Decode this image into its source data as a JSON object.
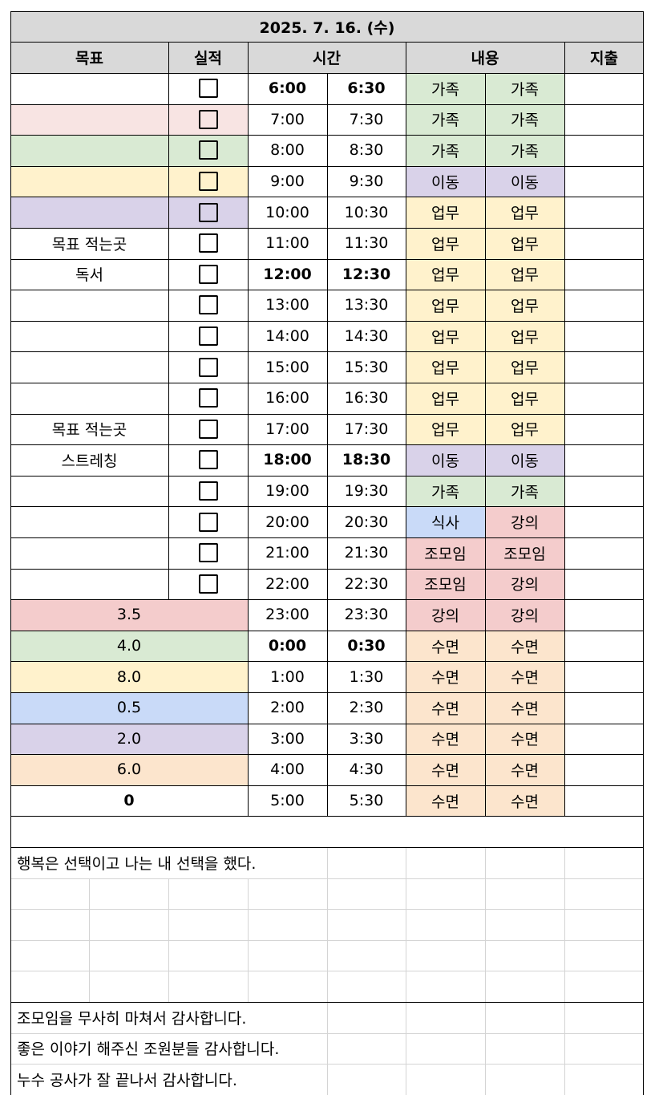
{
  "title": "2025. 7. 16. (수)",
  "headers": {
    "goal": "목표",
    "done": "실적",
    "time": "시간",
    "content": "내용",
    "expense": "지출"
  },
  "colors": {
    "header": "#d9d9d9",
    "pink": "#f8e4e3",
    "green": "#d9ead3",
    "yellow": "#fff2cc",
    "lavender": "#d9d2e9",
    "blue": "#c9daf8",
    "peach": "#fce5cd",
    "red": "#f4cccc",
    "white": "#ffffff"
  },
  "rows": [
    {
      "goal": "",
      "goal_color": "white",
      "checkbox": true,
      "check_color": "white",
      "t1": "6:00",
      "t2": "6:30",
      "bold": true,
      "c1": "가족",
      "c1_color": "green",
      "c2": "가족",
      "c2_color": "green"
    },
    {
      "goal": "",
      "goal_color": "pink",
      "checkbox": true,
      "check_color": "pink",
      "t1": "7:00",
      "t2": "7:30",
      "bold": false,
      "c1": "가족",
      "c1_color": "green",
      "c2": "가족",
      "c2_color": "green"
    },
    {
      "goal": "",
      "goal_color": "green",
      "checkbox": true,
      "check_color": "green",
      "t1": "8:00",
      "t2": "8:30",
      "bold": false,
      "c1": "가족",
      "c1_color": "green",
      "c2": "가족",
      "c2_color": "green"
    },
    {
      "goal": "",
      "goal_color": "yellow",
      "checkbox": true,
      "check_color": "yellow",
      "t1": "9:00",
      "t2": "9:30",
      "bold": false,
      "c1": "이동",
      "c1_color": "lavender",
      "c2": "이동",
      "c2_color": "lavender"
    },
    {
      "goal": "",
      "goal_color": "lavender",
      "checkbox": true,
      "check_color": "lavender",
      "t1": "10:00",
      "t2": "10:30",
      "bold": false,
      "c1": "업무",
      "c1_color": "yellow",
      "c2": "업무",
      "c2_color": "yellow"
    },
    {
      "goal": "목표 적는곳",
      "goal_color": "white",
      "checkbox": true,
      "check_color": "white",
      "t1": "11:00",
      "t2": "11:30",
      "bold": false,
      "c1": "업무",
      "c1_color": "yellow",
      "c2": "업무",
      "c2_color": "yellow"
    },
    {
      "goal": "독서",
      "goal_color": "white",
      "checkbox": true,
      "check_color": "white",
      "t1": "12:00",
      "t2": "12:30",
      "bold": true,
      "c1": "업무",
      "c1_color": "yellow",
      "c2": "업무",
      "c2_color": "yellow"
    },
    {
      "goal": "",
      "goal_color": "white",
      "checkbox": true,
      "check_color": "white",
      "t1": "13:00",
      "t2": "13:30",
      "bold": false,
      "c1": "업무",
      "c1_color": "yellow",
      "c2": "업무",
      "c2_color": "yellow"
    },
    {
      "goal": "",
      "goal_color": "white",
      "checkbox": true,
      "check_color": "white",
      "t1": "14:00",
      "t2": "14:30",
      "bold": false,
      "c1": "업무",
      "c1_color": "yellow",
      "c2": "업무",
      "c2_color": "yellow"
    },
    {
      "goal": "",
      "goal_color": "white",
      "checkbox": true,
      "check_color": "white",
      "t1": "15:00",
      "t2": "15:30",
      "bold": false,
      "c1": "업무",
      "c1_color": "yellow",
      "c2": "업무",
      "c2_color": "yellow"
    },
    {
      "goal": "",
      "goal_color": "white",
      "checkbox": true,
      "check_color": "white",
      "t1": "16:00",
      "t2": "16:30",
      "bold": false,
      "c1": "업무",
      "c1_color": "yellow",
      "c2": "업무",
      "c2_color": "yellow"
    },
    {
      "goal": "목표 적는곳",
      "goal_color": "white",
      "checkbox": true,
      "check_color": "white",
      "t1": "17:00",
      "t2": "17:30",
      "bold": false,
      "c1": "업무",
      "c1_color": "yellow",
      "c2": "업무",
      "c2_color": "yellow"
    },
    {
      "goal": "스트레칭",
      "goal_color": "white",
      "checkbox": true,
      "check_color": "white",
      "t1": "18:00",
      "t2": "18:30",
      "bold": true,
      "c1": "이동",
      "c1_color": "lavender",
      "c2": "이동",
      "c2_color": "lavender"
    },
    {
      "goal": "",
      "goal_color": "white",
      "checkbox": true,
      "check_color": "white",
      "t1": "19:00",
      "t2": "19:30",
      "bold": false,
      "c1": "가족",
      "c1_color": "green",
      "c2": "가족",
      "c2_color": "green"
    },
    {
      "goal": "",
      "goal_color": "white",
      "checkbox": true,
      "check_color": "white",
      "t1": "20:00",
      "t2": "20:30",
      "bold": false,
      "c1": "식사",
      "c1_color": "blue",
      "c2": "강의",
      "c2_color": "red"
    },
    {
      "goal": "",
      "goal_color": "white",
      "checkbox": true,
      "check_color": "white",
      "t1": "21:00",
      "t2": "21:30",
      "bold": false,
      "c1": "조모임",
      "c1_color": "red",
      "c2": "조모임",
      "c2_color": "red"
    },
    {
      "goal": "",
      "goal_color": "white",
      "checkbox": true,
      "check_color": "white",
      "t1": "22:00",
      "t2": "22:30",
      "bold": false,
      "c1": "조모임",
      "c1_color": "red",
      "c2": "강의",
      "c2_color": "red"
    },
    {
      "summary": "3.5",
      "summary_color": "red",
      "summary_bold": false,
      "t1": "23:00",
      "t2": "23:30",
      "bold": false,
      "c1": "강의",
      "c1_color": "red",
      "c2": "강의",
      "c2_color": "red"
    },
    {
      "summary": "4.0",
      "summary_color": "green",
      "summary_bold": false,
      "t1": "0:00",
      "t2": "0:30",
      "bold": true,
      "c1": "수면",
      "c1_color": "peach",
      "c2": "수면",
      "c2_color": "peach"
    },
    {
      "summary": "8.0",
      "summary_color": "yellow",
      "summary_bold": false,
      "t1": "1:00",
      "t2": "1:30",
      "bold": false,
      "c1": "수면",
      "c1_color": "peach",
      "c2": "수면",
      "c2_color": "peach"
    },
    {
      "summary": "0.5",
      "summary_color": "blue",
      "summary_bold": false,
      "t1": "2:00",
      "t2": "2:30",
      "bold": false,
      "c1": "수면",
      "c1_color": "peach",
      "c2": "수면",
      "c2_color": "peach"
    },
    {
      "summary": "2.0",
      "summary_color": "lavender",
      "summary_bold": false,
      "t1": "3:00",
      "t2": "3:30",
      "bold": false,
      "c1": "수면",
      "c1_color": "peach",
      "c2": "수면",
      "c2_color": "peach"
    },
    {
      "summary": "6.0",
      "summary_color": "peach",
      "summary_bold": false,
      "t1": "4:00",
      "t2": "4:30",
      "bold": false,
      "c1": "수면",
      "c1_color": "peach",
      "c2": "수면",
      "c2_color": "peach"
    },
    {
      "summary": "0",
      "summary_color": "white",
      "summary_bold": true,
      "t1": "5:00",
      "t2": "5:30",
      "bold": false,
      "c1": "수면",
      "c1_color": "peach",
      "c2": "수면",
      "c2_color": "peach"
    }
  ],
  "notes": [
    {
      "text": ""
    },
    {
      "text": "행복은 선택이고 나는 내 선택을 했다."
    },
    {
      "text": ""
    },
    {
      "text": ""
    },
    {
      "text": ""
    },
    {
      "text": ""
    },
    {
      "text": "조모임을 무사히 마쳐서 감사합니다."
    },
    {
      "text": "좋은 이야기 해주신 조원분들 감사합니다."
    },
    {
      "text": "누수 공사가 잘 끝나서 감사합니다."
    }
  ]
}
